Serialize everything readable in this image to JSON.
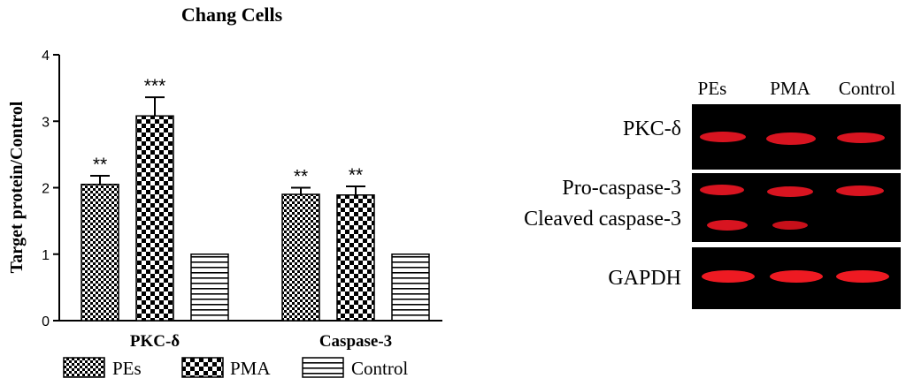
{
  "chart_data": {
    "type": "bar",
    "title": "Chang Cells",
    "ylabel": "Target protein/Control",
    "xlabel": "",
    "ylim": [
      0,
      4
    ],
    "yticks": [
      "0",
      "1",
      "2",
      "3",
      "4"
    ],
    "categories": [
      "PKC-δ",
      "Caspase-3"
    ],
    "series": [
      {
        "name": "PEs",
        "pattern": "checker-small",
        "values": [
          2.05,
          1.9
        ],
        "errors": [
          0.13,
          0.1
        ],
        "significance": [
          "**",
          "**"
        ]
      },
      {
        "name": "PMA",
        "pattern": "checker-large",
        "values": [
          3.08,
          1.89
        ],
        "errors": [
          0.28,
          0.13
        ],
        "significance": [
          "***",
          "**"
        ]
      },
      {
        "name": "Control",
        "pattern": "horizontal-lines",
        "values": [
          1.0,
          1.0
        ],
        "errors": [
          0,
          0
        ],
        "significance": [
          "",
          ""
        ]
      }
    ],
    "legend_position": "bottom"
  },
  "blot": {
    "lanes": [
      "PEs",
      "PMA",
      "Control"
    ],
    "row_labels": [
      "PKC-δ",
      "Pro-caspase-3",
      "Cleaved caspase-3",
      "GAPDH"
    ],
    "band_color": "#e0141e",
    "background": "#000000"
  }
}
